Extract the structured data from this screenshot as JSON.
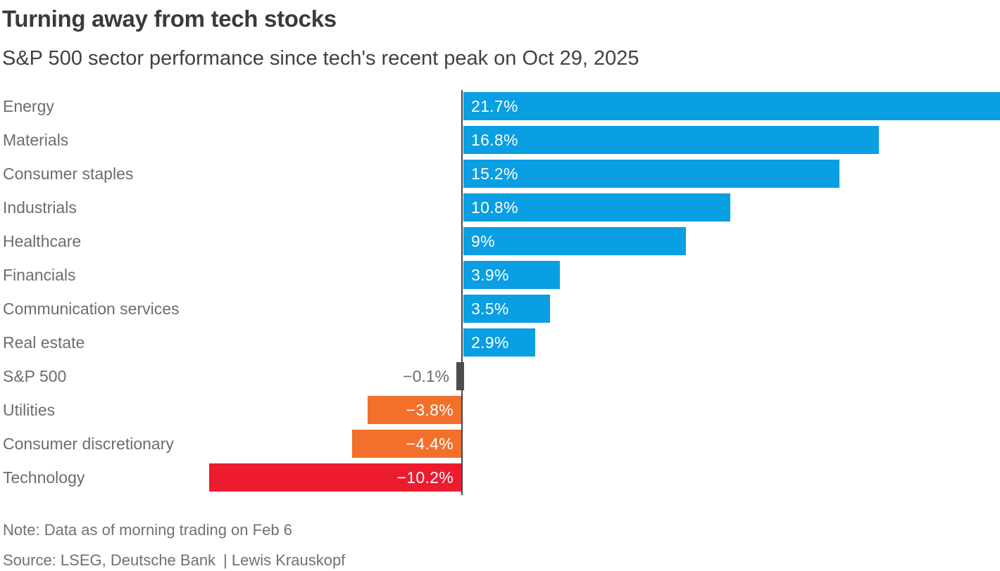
{
  "header": {
    "title": "Turning away from tech stocks",
    "subtitle": "S&P 500 sector performance since tech's recent peak on Oct 29, 2025"
  },
  "footer": {
    "note": "Note: Data as of morning trading on Feb 6",
    "source": "Source: LSEG, Deutsche Bank | Lewis Krauskopf"
  },
  "chart_data": {
    "type": "bar",
    "orientation": "horizontal",
    "title": "Turning away from tech stocks",
    "subtitle": "S&P 500 sector performance since tech's recent peak on Oct 29, 2025",
    "xlabel": "",
    "ylabel": "",
    "xlim": [
      -10.2,
      21.7
    ],
    "grid": false,
    "legend": "none",
    "value_unit": "%",
    "colors": {
      "positive": "#0a9ee2",
      "negative": "#f2702b",
      "severe": "#ec1c2e",
      "benchmark": "#4d4d4d",
      "baseline": "#454545"
    },
    "categories": [
      "Energy",
      "Materials",
      "Consumer staples",
      "Industrials",
      "Healthcare",
      "Financials",
      "Communication services",
      "Real estate",
      "S&P 500",
      "Utilities",
      "Consumer discretionary",
      "Technology"
    ],
    "values": [
      21.7,
      16.8,
      15.2,
      10.8,
      9,
      3.9,
      3.5,
      2.9,
      -0.1,
      -3.8,
      -4.4,
      -10.2
    ],
    "rows": [
      {
        "label": "Energy",
        "value": 21.7,
        "display": "21.7%",
        "color": "positive",
        "label_outside": false
      },
      {
        "label": "Materials",
        "value": 16.8,
        "display": "16.8%",
        "color": "positive",
        "label_outside": false
      },
      {
        "label": "Consumer staples",
        "value": 15.2,
        "display": "15.2%",
        "color": "positive",
        "label_outside": false
      },
      {
        "label": "Industrials",
        "value": 10.8,
        "display": "10.8%",
        "color": "positive",
        "label_outside": false
      },
      {
        "label": "Healthcare",
        "value": 9,
        "display": "9%",
        "color": "positive",
        "label_outside": false
      },
      {
        "label": "Financials",
        "value": 3.9,
        "display": "3.9%",
        "color": "positive",
        "label_outside": false
      },
      {
        "label": "Communication services",
        "value": 3.5,
        "display": "3.5%",
        "color": "positive",
        "label_outside": false
      },
      {
        "label": "Real estate",
        "value": 2.9,
        "display": "2.9%",
        "color": "positive",
        "label_outside": false
      },
      {
        "label": "S&P 500",
        "value": -0.1,
        "display": "−0.1%",
        "color": "benchmark",
        "label_outside": true
      },
      {
        "label": "Utilities",
        "value": -3.8,
        "display": "−3.8%",
        "color": "negative",
        "label_outside": false
      },
      {
        "label": "Consumer discretionary",
        "value": -4.4,
        "display": "−4.4%",
        "color": "negative",
        "label_outside": false
      },
      {
        "label": "Technology",
        "value": -10.2,
        "display": "−10.2%",
        "color": "severe",
        "label_outside": false
      }
    ]
  }
}
